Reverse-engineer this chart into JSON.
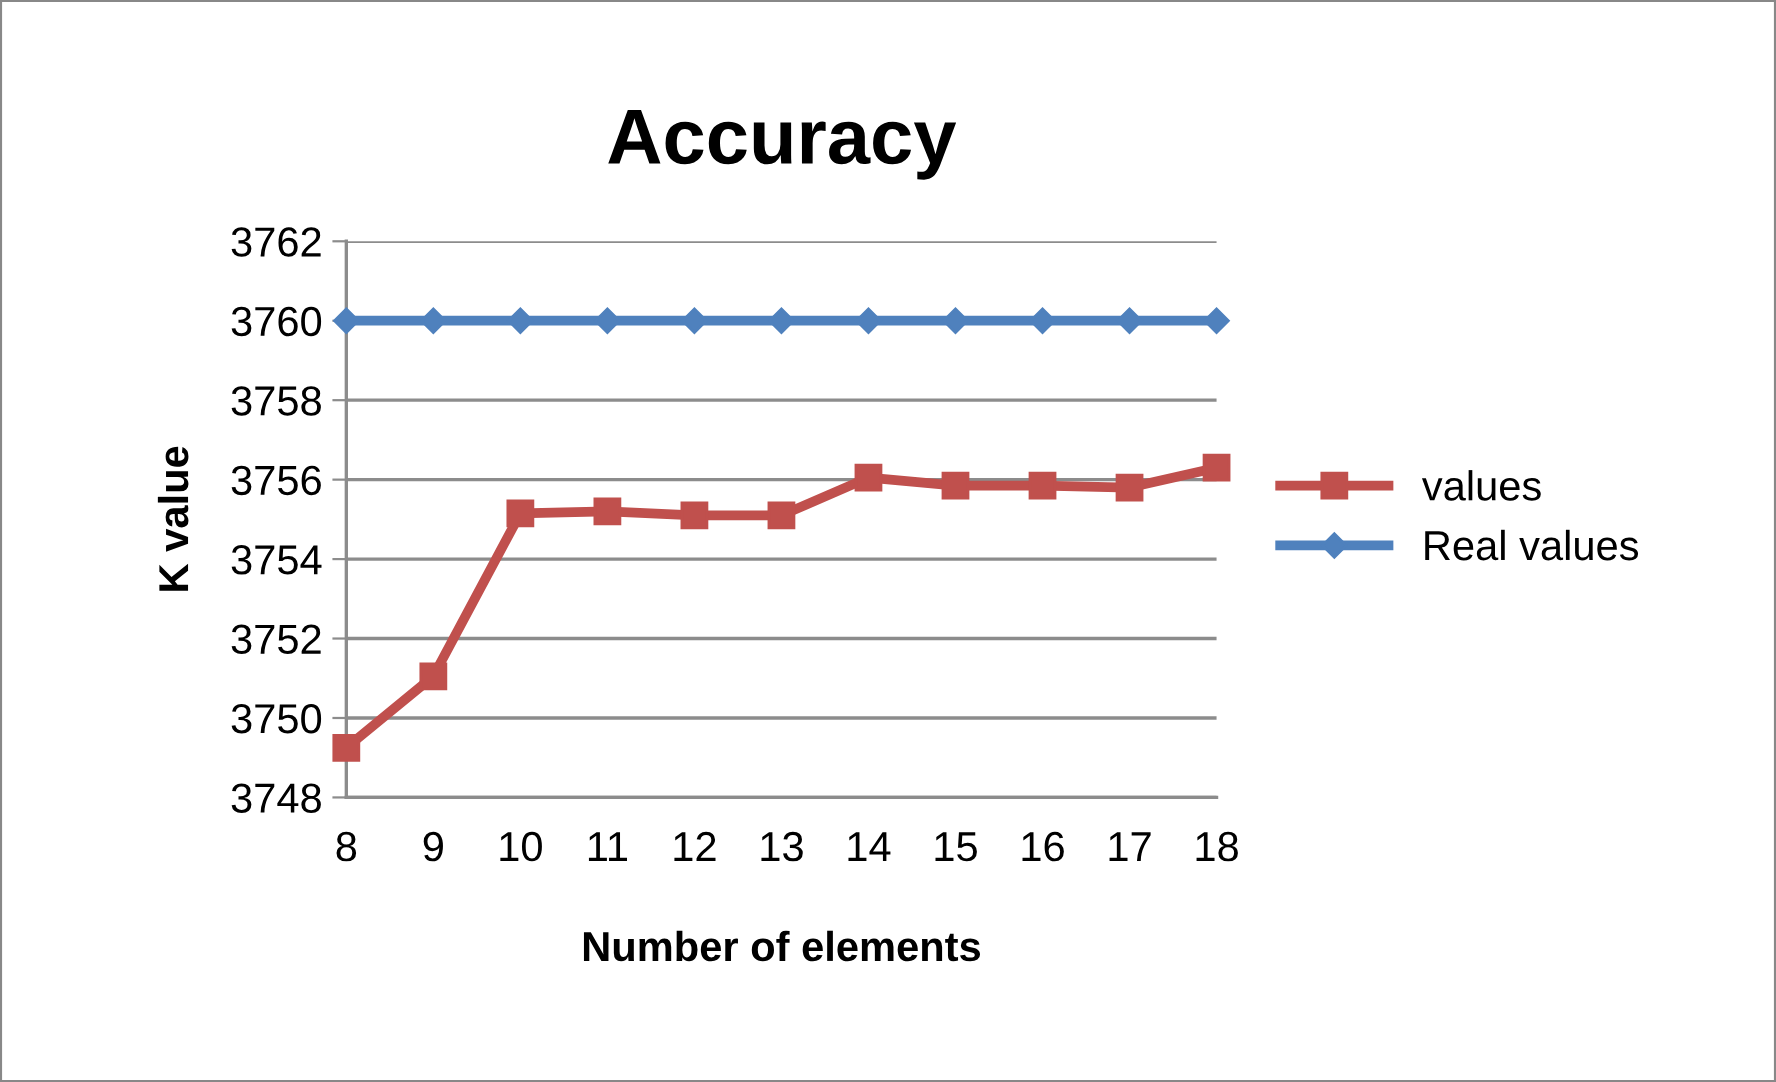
{
  "chart_data": {
    "type": "line",
    "title": "Accuracy",
    "xlabel": "Number of elements",
    "ylabel": "K value",
    "categories": [
      "8",
      "9",
      "10",
      "11",
      "12",
      "13",
      "14",
      "15",
      "16",
      "17",
      "18"
    ],
    "series": [
      {
        "name": "values",
        "color": "#c0504d",
        "marker": "square",
        "values": [
          3749.25,
          3751.05,
          3755.15,
          3755.2,
          3755.1,
          3755.1,
          3756.05,
          3755.85,
          3755.85,
          3755.8,
          3756.3
        ]
      },
      {
        "name": "Real values",
        "color": "#4f81bd",
        "marker": "diamond",
        "values": [
          3760,
          3760,
          3760,
          3760,
          3760,
          3760,
          3760,
          3760,
          3760,
          3760,
          3760
        ]
      }
    ],
    "ylim": [
      3748,
      3762
    ],
    "yticks": [
      3748,
      3750,
      3752,
      3754,
      3756,
      3758,
      3760,
      3762
    ],
    "grid": "y",
    "legend": "right",
    "line_style": "solid"
  }
}
